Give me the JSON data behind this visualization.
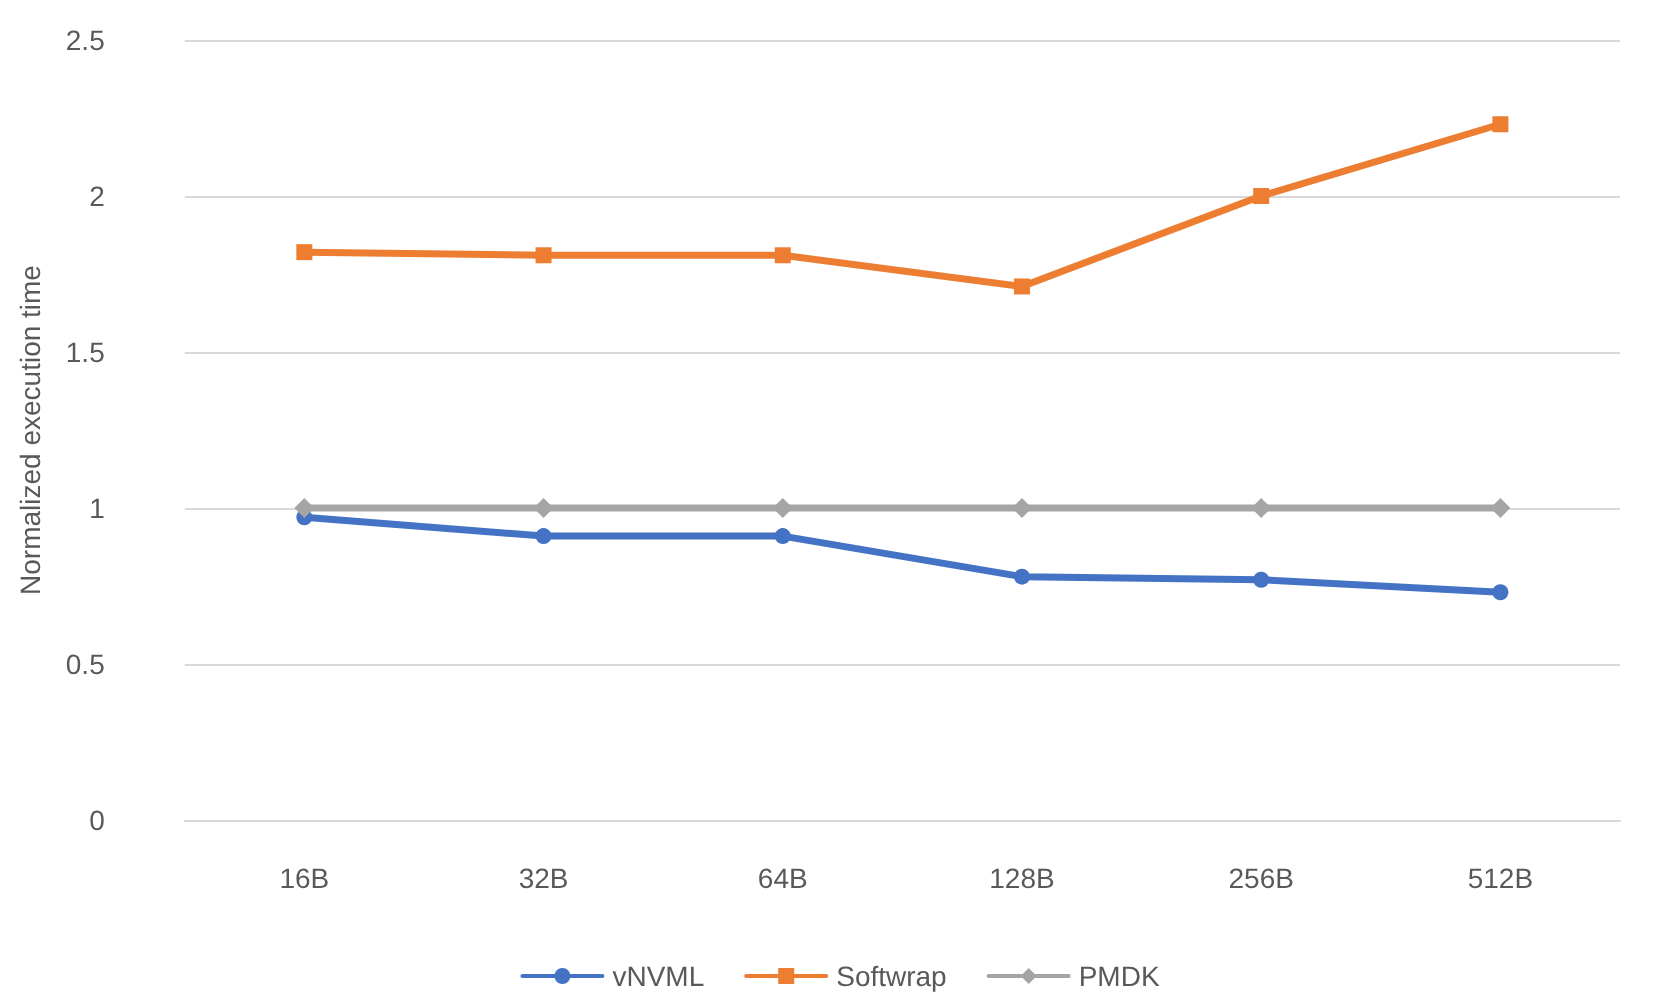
{
  "chart_data": {
    "type": "line",
    "ylabel": "Normalized execution time",
    "categories": [
      "16B",
      "32B",
      "64B",
      "128B",
      "256B",
      "512B"
    ],
    "series": [
      {
        "name": "vNVML",
        "color": "#4472c4",
        "marker": "circle",
        "values": [
          0.97,
          0.91,
          0.91,
          0.78,
          0.77,
          0.73
        ]
      },
      {
        "name": "Softwrap",
        "color": "#ed7d31",
        "marker": "square",
        "values": [
          1.82,
          1.81,
          1.81,
          1.71,
          2.0,
          2.23
        ]
      },
      {
        "name": "PMDK",
        "color": "#a5a5a5",
        "marker": "diamond",
        "values": [
          1,
          1,
          1,
          1,
          1,
          1
        ]
      }
    ],
    "ylim": [
      0,
      2.5
    ],
    "yticks": [
      0,
      0.5,
      1,
      1.5,
      2,
      2.5
    ],
    "grid": "y",
    "legend": "bottom"
  }
}
